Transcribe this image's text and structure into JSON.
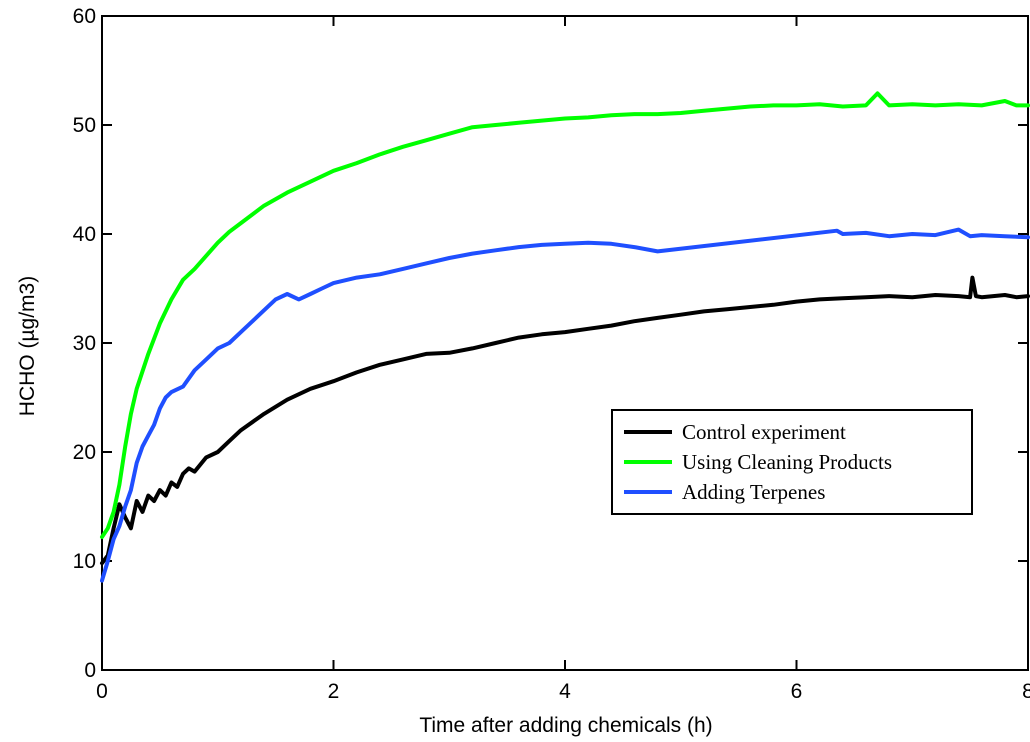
{
  "chart_data": {
    "type": "line",
    "title": "",
    "xlabel": "Time after adding chemicals (h)",
    "ylabel": "HCHO (µg/m3)",
    "xlim": [
      0,
      8
    ],
    "ylim": [
      0,
      60
    ],
    "xticks": [
      0,
      2,
      4,
      6,
      8
    ],
    "yticks": [
      0,
      10,
      20,
      30,
      40,
      50,
      60
    ],
    "grid": false,
    "legend_position": "right",
    "series": [
      {
        "name": "Control experiment",
        "color": "#000000",
        "x": [
          0.0,
          0.05,
          0.1,
          0.15,
          0.2,
          0.25,
          0.3,
          0.35,
          0.4,
          0.45,
          0.5,
          0.55,
          0.6,
          0.65,
          0.7,
          0.75,
          0.8,
          0.9,
          1.0,
          1.1,
          1.2,
          1.4,
          1.6,
          1.8,
          2.0,
          2.2,
          2.4,
          2.6,
          2.8,
          3.0,
          3.2,
          3.4,
          3.6,
          3.8,
          4.0,
          4.2,
          4.4,
          4.6,
          4.8,
          5.0,
          5.2,
          5.4,
          5.6,
          5.8,
          6.0,
          6.2,
          6.4,
          6.6,
          6.8,
          7.0,
          7.2,
          7.4,
          7.5,
          7.52,
          7.55,
          7.6,
          7.7,
          7.8,
          7.9,
          8.0
        ],
        "y": [
          9.8,
          10.5,
          13.0,
          15.2,
          14.0,
          13.0,
          15.5,
          14.5,
          16.0,
          15.5,
          16.5,
          16.0,
          17.2,
          16.8,
          18.0,
          18.5,
          18.2,
          19.5,
          20.0,
          21.0,
          22.0,
          23.5,
          24.8,
          25.8,
          26.5,
          27.3,
          28.0,
          28.5,
          29.0,
          29.1,
          29.5,
          30.0,
          30.5,
          30.8,
          31.0,
          31.3,
          31.6,
          32.0,
          32.3,
          32.6,
          32.9,
          33.1,
          33.3,
          33.5,
          33.8,
          34.0,
          34.1,
          34.2,
          34.3,
          34.2,
          34.4,
          34.3,
          34.2,
          36.0,
          34.3,
          34.2,
          34.3,
          34.4,
          34.2,
          34.3
        ]
      },
      {
        "name": "Using Cleaning Products",
        "color": "#00ff00",
        "x": [
          0.0,
          0.05,
          0.1,
          0.15,
          0.2,
          0.25,
          0.3,
          0.4,
          0.5,
          0.6,
          0.7,
          0.8,
          0.9,
          1.0,
          1.1,
          1.2,
          1.4,
          1.6,
          1.8,
          2.0,
          2.2,
          2.4,
          2.6,
          2.8,
          3.0,
          3.2,
          3.4,
          3.6,
          3.8,
          4.0,
          4.2,
          4.4,
          4.6,
          4.8,
          5.0,
          5.2,
          5.4,
          5.6,
          5.8,
          6.0,
          6.2,
          6.4,
          6.6,
          6.7,
          6.8,
          7.0,
          7.2,
          7.4,
          7.6,
          7.8,
          7.9,
          8.0
        ],
        "y": [
          12.2,
          13.0,
          14.5,
          17.0,
          20.5,
          23.5,
          25.8,
          29.0,
          31.8,
          34.0,
          35.8,
          36.8,
          38.0,
          39.2,
          40.2,
          41.0,
          42.6,
          43.8,
          44.8,
          45.8,
          46.5,
          47.3,
          48.0,
          48.6,
          49.2,
          49.8,
          50.0,
          50.2,
          50.4,
          50.6,
          50.7,
          50.9,
          51.0,
          51.0,
          51.1,
          51.3,
          51.5,
          51.7,
          51.8,
          51.8,
          51.9,
          51.7,
          51.8,
          52.9,
          51.8,
          51.9,
          51.8,
          51.9,
          51.8,
          52.2,
          51.8,
          51.8
        ]
      },
      {
        "name": "Adding Terpenes",
        "color": "#1f4fff",
        "x": [
          0.0,
          0.05,
          0.1,
          0.15,
          0.2,
          0.25,
          0.3,
          0.35,
          0.4,
          0.45,
          0.5,
          0.55,
          0.6,
          0.7,
          0.8,
          0.9,
          1.0,
          1.1,
          1.2,
          1.3,
          1.4,
          1.5,
          1.6,
          1.7,
          1.8,
          1.9,
          2.0,
          2.2,
          2.4,
          2.6,
          2.8,
          3.0,
          3.2,
          3.4,
          3.6,
          3.8,
          4.0,
          4.2,
          4.4,
          4.6,
          4.8,
          6.35,
          6.4,
          6.6,
          6.8,
          7.0,
          7.2,
          7.4,
          7.5,
          7.6,
          7.8,
          8.0
        ],
        "y": [
          8.2,
          10.0,
          12.0,
          13.2,
          15.0,
          16.5,
          19.0,
          20.5,
          21.5,
          22.5,
          24.0,
          25.0,
          25.5,
          26.0,
          27.5,
          28.5,
          29.5,
          30.0,
          31.0,
          32.0,
          33.0,
          34.0,
          34.5,
          34.0,
          34.5,
          35.0,
          35.5,
          36.0,
          36.3,
          36.8,
          37.3,
          37.8,
          38.2,
          38.5,
          38.8,
          39.0,
          39.1,
          39.2,
          39.1,
          38.8,
          38.4,
          40.3,
          40.0,
          40.1,
          39.8,
          40.0,
          39.9,
          40.4,
          39.8,
          39.9,
          39.8,
          39.7
        ]
      }
    ]
  }
}
